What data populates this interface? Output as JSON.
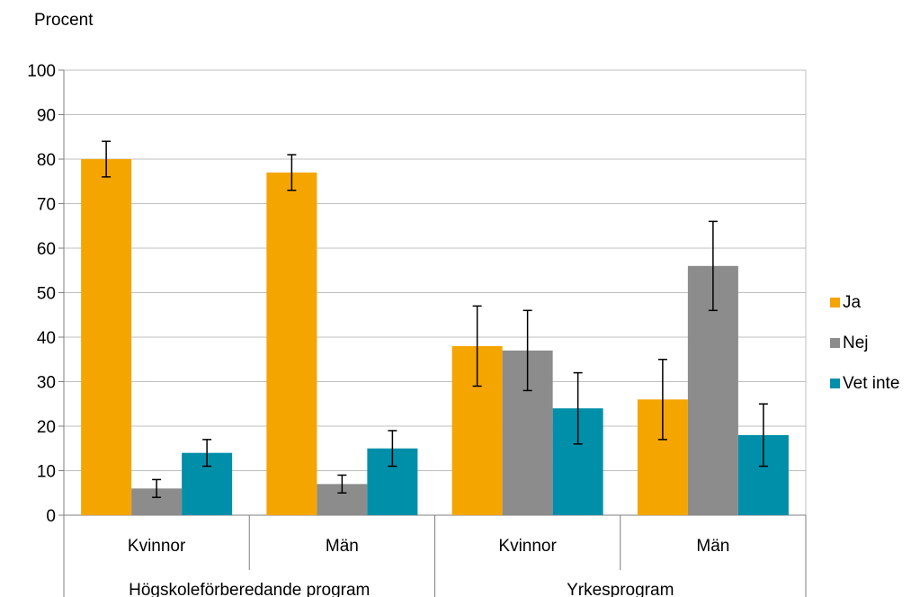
{
  "chart_data": {
    "type": "bar",
    "ylabel": "Procent",
    "ylim": [
      0,
      100
    ],
    "yticks": [
      0,
      10,
      20,
      30,
      40,
      50,
      60,
      70,
      80,
      90,
      100
    ],
    "grid": true,
    "legend_position": "right",
    "groups": [
      {
        "label": "Högskoleförberedande program",
        "categories": [
          "Kvinnor",
          "Män"
        ]
      },
      {
        "label": "Yrkesprogram",
        "categories": [
          "Kvinnor",
          "Män"
        ]
      }
    ],
    "categories": [
      "Kvinnor",
      "Män",
      "Kvinnor",
      "Män"
    ],
    "series": [
      {
        "name": "Ja",
        "color": "#F5A500",
        "values": [
          80,
          77,
          38,
          26
        ],
        "error_low": [
          76,
          73,
          29,
          17
        ],
        "error_high": [
          84,
          81,
          47,
          35
        ]
      },
      {
        "name": "Nej",
        "color": "#8C8C8C",
        "values": [
          6,
          7,
          37,
          56
        ],
        "error_low": [
          4,
          5,
          28,
          46
        ],
        "error_high": [
          8,
          9,
          46,
          66
        ]
      },
      {
        "name": "Vet inte",
        "color": "#008FA8",
        "values": [
          14,
          15,
          24,
          18
        ],
        "error_low": [
          11,
          11,
          16,
          11
        ],
        "error_high": [
          17,
          19,
          32,
          25
        ]
      }
    ]
  }
}
